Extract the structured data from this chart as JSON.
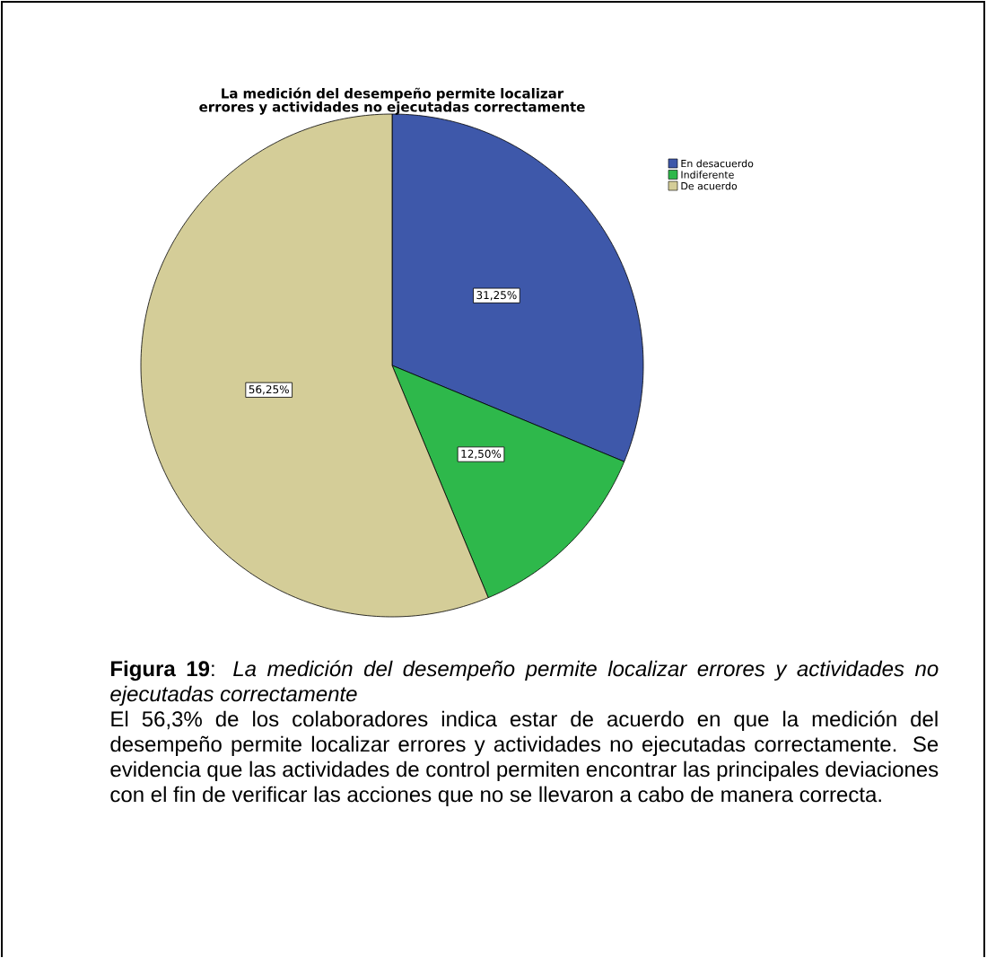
{
  "chart_data": {
    "type": "pie",
    "title": "La medición del desempeño permite localizar errores y actividades no ejecutadas correctamente",
    "categories": [
      "En desacuerdo",
      "Indiferente",
      "De acuerdo"
    ],
    "values": [
      31.25,
      12.5,
      56.25
    ],
    "colors": [
      "#3e58aa",
      "#2eb84b",
      "#d4cd98"
    ],
    "value_labels": [
      "31,25%",
      "12,50%",
      "56,25%"
    ],
    "legend": "top right",
    "annotations": [
      "**Figura 19**: *La medición del desempeño permite localizar errores y actividades no ejecutadas correctamente*",
      "El 56,3% de los colaboradores indica estar de acuerdo en que la medición del desempeño permite localizar errores y actividades no ejecutadas correctamente. Se evidencia que las actividades de control permiten encontrar las principales deviaciones con el fin de verificar las acciones que no se llevaron a cabo de manera correcta."
    ]
  }
}
